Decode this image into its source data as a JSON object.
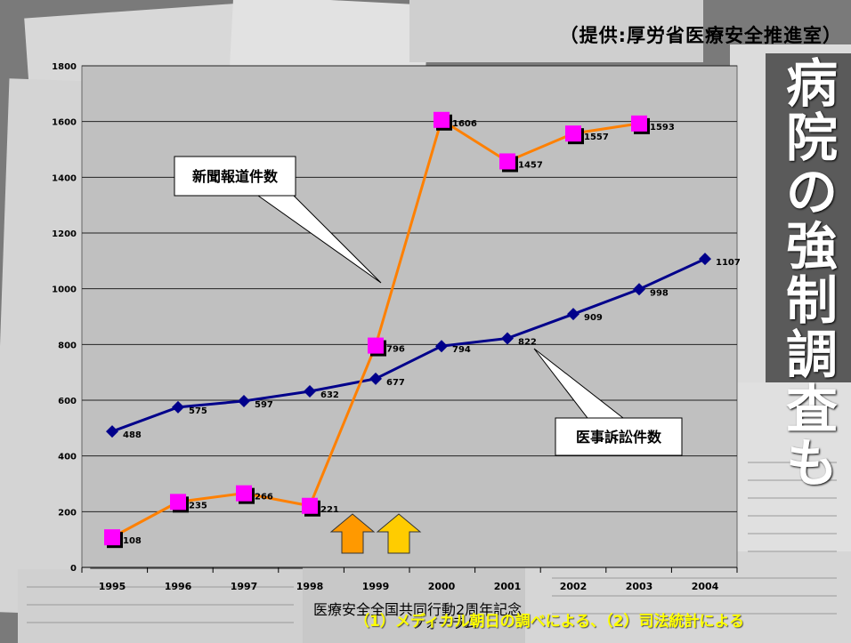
{
  "source": "（提供:厚労省医療安全推進室）",
  "background_headline": "病院の強制調査も",
  "footer_line1": "医療安全全国共同行動2周年記念",
  "footer_line2": "フォーラム",
  "note": "（1）メディカル朝日の調べによる、（2）司法統計による",
  "colors": {
    "plot_bg": "#c0c0c0",
    "news_line": "#ff8000",
    "news_marker": "#ff00ff",
    "suit_line": "#00008b",
    "arrow1": "#ff9900",
    "arrow2": "#ffcc00"
  },
  "chart_data": {
    "type": "line",
    "categories": [
      "1995",
      "1996",
      "1997",
      "1998",
      "1999",
      "2000",
      "2001",
      "2002",
      "2003",
      "2004"
    ],
    "ylim": [
      0,
      1800
    ],
    "yticks": [
      0,
      200,
      400,
      600,
      800,
      1000,
      1200,
      1400,
      1600,
      1800
    ],
    "grid": true,
    "series": [
      {
        "name": "新聞報道件数",
        "values": [
          108,
          235,
          266,
          221,
          796,
          1606,
          1457,
          1557,
          1593,
          null
        ]
      },
      {
        "name": "医事訴訟件数",
        "values": [
          488,
          575,
          597,
          632,
          677,
          794,
          822,
          909,
          998,
          1107
        ]
      }
    ],
    "arrows_at_categories": [
      "1999",
      "1999"
    ]
  }
}
